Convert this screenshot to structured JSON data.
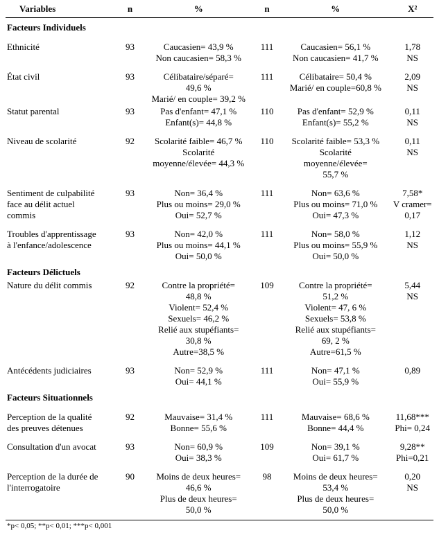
{
  "table": {
    "header": {
      "variables": "Variables",
      "n": "n",
      "pct": "%",
      "x2": "X²"
    },
    "footnote": "*p< 0,05; **p< 0,01; ***p< 0,001",
    "sections": [
      {
        "title": "Facteurs Individuels",
        "rows": [
          {
            "label": [
              "Ethnicité"
            ],
            "n1": "93",
            "p1": [
              "Caucasien= 43,9 %",
              "Non caucasien= 58,3 %"
            ],
            "n2": "111",
            "p2": [
              "Caucasien= 56,1 %",
              "Non caucasien= 41,7 %"
            ],
            "x2": [
              "1,78",
              "NS"
            ]
          },
          {
            "label": [
              "État civil"
            ],
            "n1": "93",
            "p1": [
              "Célibataire/séparé=",
              "49,6 %",
              "Marié/ en couple= 39,2 %"
            ],
            "n2": "111",
            "p2": [
              "Célibataire= 50,4 %",
              "Marié/ en couple=60,8 %"
            ],
            "x2": [
              "2,09",
              "NS"
            ]
          },
          {
            "label": [
              "Statut parental"
            ],
            "n1": "93",
            "p1": [
              "Pas d'enfant= 47,1 %",
              "Enfant(s)= 44,8 %"
            ],
            "n2": "110",
            "p2": [
              "Pas d'enfant= 52,9 %",
              "Enfant(s)= 55,2 %"
            ],
            "x2": [
              "0,11",
              "NS"
            ],
            "tight": true
          },
          {
            "label": [
              "Niveau de scolarité"
            ],
            "n1": "92",
            "p1": [
              "Scolarité faible= 46,7 %",
              "Scolarité",
              "moyenne/élevée= 44,3 %"
            ],
            "n2": "110",
            "p2": [
              "Scolarité faible= 53,3 %",
              "Scolarité",
              "moyenne/élevée=",
              "55,7 %"
            ],
            "x2": [
              "0,11",
              "NS"
            ]
          },
          {
            "label": [
              "Sentiment de culpabilité",
              "face au délit actuel",
              "commis"
            ],
            "n1": "93",
            "p1": [
              "Non= 36,4 %",
              "Plus ou moins= 29,0 %",
              "Oui= 52,7 %"
            ],
            "n2": "111",
            "p2": [
              "Non= 63,6 %",
              "Plus ou moins= 71,0 %",
              "Oui= 47,3 %"
            ],
            "x2": [
              "7,58*",
              "V cramer=",
              "0,17"
            ]
          },
          {
            "label": [
              "Troubles d'apprentissage",
              "à l'enfance/adolescence"
            ],
            "n1": "93",
            "p1": [
              "Non= 42,0 %",
              "Plus ou moins= 44,1 %",
              "Oui= 50,0 %"
            ],
            "n2": "111",
            "p2": [
              "Non= 58,0 %",
              "Plus ou moins= 55,9 %",
              "Oui= 50,0 %"
            ],
            "x2": [
              "1,12",
              "NS"
            ]
          }
        ]
      },
      {
        "title": "Facteurs Délictuels",
        "rows": [
          {
            "label": [
              "Nature du délit commis"
            ],
            "n1": "92",
            "p1": [
              "Contre la propriété=",
              "48,8 %",
              "Violent= 52,4 %",
              "Sexuels= 46,2 %",
              "Relié aux stupéfiants=",
              "30,8 %",
              "Autre=38,5 %"
            ],
            "n2": "109",
            "p2": [
              "Contre la propriété=",
              "51,2 %",
              "Violent= 47, 6 %",
              "Sexuels= 53,8 %",
              "Relié aux stupéfiants=",
              "69, 2 %",
              "Autre=61,5 %"
            ],
            "x2": [
              "5,44",
              "NS"
            ],
            "tight": true
          },
          {
            "label": [
              "Antécédents judiciaires"
            ],
            "n1": "93",
            "p1": [
              "Non= 52,9 %",
              "Oui= 44,1 %"
            ],
            "n2": "111",
            "p2": [
              "Non= 47,1 %",
              "Oui= 55,9 %"
            ],
            "x2": [
              "0,89"
            ]
          }
        ]
      },
      {
        "title": "Facteurs Situationnels",
        "rows": [
          {
            "label": [
              "Perception de la qualité",
              "des preuves détenues"
            ],
            "n1": "92",
            "p1": [
              "Mauvaise= 31,4 %",
              "Bonne= 55,6 %"
            ],
            "n2": "111",
            "p2": [
              "Mauvaise= 68,6 %",
              "Bonne= 44,4 %"
            ],
            "x2": [
              "11,68***",
              "Phi= 0,24"
            ]
          },
          {
            "label": [
              "Consultation d'un avocat"
            ],
            "n1": "93",
            "p1": [
              "Non= 60,9 %",
              "Oui= 38,3 %"
            ],
            "n2": "109",
            "p2": [
              "Non= 39,1 %",
              "Oui= 61,7 %"
            ],
            "x2": [
              "9,28**",
              "Phi=0,21"
            ]
          },
          {
            "label": [
              "Perception de la durée de",
              "l'interrogatoire"
            ],
            "n1": "90",
            "p1": [
              "Moins de deux heures=",
              "46,6 %",
              "Plus de deux heures=",
              "50,0 %"
            ],
            "n2": "98",
            "p2": [
              "Moins de deux heures=",
              "53,4 %",
              "Plus de deux heures=",
              "50,0 %"
            ],
            "x2": [
              "0,20",
              "NS"
            ],
            "last": true
          }
        ]
      }
    ]
  }
}
